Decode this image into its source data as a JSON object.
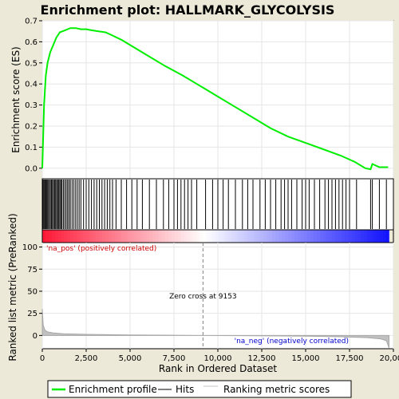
{
  "chart_data": [
    {
      "type": "line",
      "title": "Enrichment plot: HALLMARK_GLYCOLYSIS",
      "ylabel": "Enrichment score (ES)",
      "xlim": [
        0,
        20000
      ],
      "ylim": [
        -0.05,
        0.7
      ],
      "y_ticks": [
        "0.0",
        "0.1",
        "0.2",
        "0.3",
        "0.4",
        "0.5",
        "0.6",
        "0.7"
      ],
      "grid": true,
      "series": [
        {
          "color": "#00ee00",
          "x": [
            0,
            100,
            200,
            300,
            450,
            600,
            800,
            1000,
            1300,
            1600,
            1900,
            2200,
            2500,
            2800,
            3200,
            3600,
            4000,
            4500,
            5000,
            6000,
            7000,
            8000,
            9000,
            10000,
            11000,
            12000,
            13000,
            14000,
            15000,
            16000,
            17000,
            17800,
            18400,
            18700,
            18800,
            19200,
            19700
          ],
          "y": [
            0.0,
            0.3,
            0.44,
            0.5,
            0.55,
            0.58,
            0.62,
            0.645,
            0.655,
            0.665,
            0.665,
            0.66,
            0.66,
            0.655,
            0.65,
            0.645,
            0.63,
            0.61,
            0.585,
            0.535,
            0.485,
            0.44,
            0.39,
            0.34,
            0.29,
            0.24,
            0.19,
            0.15,
            0.12,
            0.09,
            0.06,
            0.03,
            0.0,
            -0.005,
            0.02,
            0.005,
            0.005
          ]
        }
      ]
    },
    {
      "type": "scatter",
      "name": "hits",
      "xlim": [
        0,
        20000
      ],
      "hit_positions": [
        30,
        80,
        130,
        180,
        230,
        280,
        330,
        400,
        460,
        520,
        580,
        640,
        700,
        760,
        820,
        880,
        940,
        1000,
        1060,
        1120,
        1200,
        1280,
        1360,
        1440,
        1520,
        1600,
        1700,
        1800,
        1900,
        2000,
        2100,
        2200,
        2350,
        2500,
        2650,
        2800,
        2950,
        3100,
        3250,
        3400,
        3550,
        3700,
        3850,
        4000,
        4200,
        4500,
        4800,
        5100,
        5400,
        5700,
        6100,
        6500,
        6900,
        7200,
        7500,
        7700,
        7900,
        8100,
        8300,
        8500,
        8800,
        9300,
        9700,
        10000,
        10300,
        10600,
        11000,
        11400,
        11700,
        12000,
        12400,
        12700,
        13000,
        13300,
        13600,
        13800,
        14000,
        14200,
        14500,
        14800,
        15000,
        15200,
        15500,
        15800,
        16100,
        16300,
        16500,
        16700,
        16900,
        17100,
        17300,
        17500,
        17900,
        18700,
        18800,
        19200,
        19600
      ]
    },
    {
      "type": "area",
      "ylabel": "Ranked list metric (PreRanked)",
      "xlabel": "Rank in Ordered Dataset",
      "xlim": [
        0,
        20000
      ],
      "ylim": [
        -15,
        105
      ],
      "x_ticks": [
        "0",
        "2,500",
        "5,000",
        "7,500",
        "10,000",
        "12,500",
        "15,000",
        "17,500",
        "20,000"
      ],
      "y_ticks": [
        "0",
        "25",
        "50",
        "75",
        "100"
      ],
      "zero_cross": 9153,
      "zero_cross_label": "Zero cross at 9153",
      "pos_label": "'na_pos' (positively correlated)",
      "neg_label": "'na_neg' (negatively correlated)",
      "series": [
        {
          "color": "#c0c0c0",
          "x": [
            0,
            50,
            150,
            300,
            600,
            1200,
            2500,
            5000,
            7000,
            9153,
            12000,
            15000,
            17000,
            18500,
            19300,
            19600,
            19750
          ],
          "y": [
            30,
            12,
            6,
            4,
            3,
            2,
            1.2,
            0.6,
            0.3,
            0,
            -0.4,
            -0.8,
            -1.5,
            -2.5,
            -4,
            -6,
            -14
          ]
        }
      ]
    }
  ],
  "legend": {
    "items": [
      {
        "label": "Enrichment profile",
        "color": "#00ee00"
      },
      {
        "label": "Hits",
        "color": "#000000"
      },
      {
        "label": "Ranking metric scores",
        "color": "#c0c0c0"
      }
    ]
  }
}
